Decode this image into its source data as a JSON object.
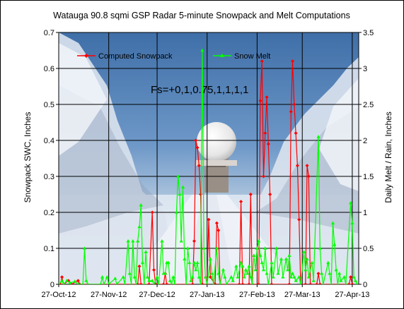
{
  "chart_data": {
    "type": "line",
    "title": "Watauga 90.8 sqmi GSP Radar 5-minute Snowpack and Melt Computations",
    "ylabel": "Snowpack SWC, Inches",
    "y2label": "Daily Melt / Rain, Inches",
    "annotation": "Fs=+0,1,0.75,1,1,1,1",
    "xlim": [
      "2012-10-27",
      "2013-05-01"
    ],
    "ylim": [
      0,
      0.7
    ],
    "y2lim": [
      0,
      3.5
    ],
    "x_ticks": [
      "27-Oct-12",
      "27-Nov-12",
      "27-Dec-12",
      "27-Jan-13",
      "27-Feb-13",
      "27-Mar-13",
      "27-Apr-13"
    ],
    "y_ticks": [
      "0",
      "0.1",
      "0.2",
      "0.3",
      "0.4",
      "0.5",
      "0.6",
      "0.7"
    ],
    "y2_ticks": [
      "0",
      "0.5",
      "1",
      "1.5",
      "2",
      "2.5",
      "3",
      "3.5"
    ],
    "grid": true,
    "legend": "top",
    "background": "photo of a snow-covered road lined with frosted trees leading to a white radar dome under a blue sky",
    "series": [
      {
        "name": "Computed Snowpack",
        "axis": "left",
        "color": "#ff0000",
        "marker": "diamond",
        "points": [
          [
            "2012-10-28",
            0.0
          ],
          [
            "2012-10-29",
            0.02
          ],
          [
            "2012-10-30",
            0.0
          ],
          [
            "2012-11-02",
            0.01
          ],
          [
            "2012-11-04",
            0.0
          ],
          [
            "2012-11-08",
            0.01
          ],
          [
            "2012-11-09",
            0.0
          ],
          [
            "2012-12-15",
            0.0
          ],
          [
            "2012-12-16",
            0.05
          ],
          [
            "2012-12-17",
            0.0
          ],
          [
            "2012-12-22",
            0.0
          ],
          [
            "2012-12-24",
            0.2
          ],
          [
            "2012-12-25",
            0.04
          ],
          [
            "2012-12-26",
            0.0
          ],
          [
            "2012-12-31",
            0.0
          ],
          [
            "2013-01-01",
            0.03
          ],
          [
            "2013-01-02",
            0.0
          ],
          [
            "2013-01-18",
            0.0
          ],
          [
            "2013-01-19",
            0.12
          ],
          [
            "2013-01-20",
            0.4
          ],
          [
            "2013-01-21",
            0.38
          ],
          [
            "2013-01-22",
            0.33
          ],
          [
            "2013-01-23",
            0.25
          ],
          [
            "2013-01-24",
            0.0
          ],
          [
            "2013-01-27",
            0.0
          ],
          [
            "2013-01-28",
            0.18
          ],
          [
            "2013-01-29",
            0.02
          ],
          [
            "2013-02-01",
            0.0
          ],
          [
            "2013-02-02",
            0.17
          ],
          [
            "2013-02-03",
            0.15
          ],
          [
            "2013-02-04",
            0.0
          ],
          [
            "2013-02-16",
            0.0
          ],
          [
            "2013-02-17",
            0.23
          ],
          [
            "2013-02-18",
            0.0
          ],
          [
            "2013-02-22",
            0.0
          ],
          [
            "2013-02-23",
            0.25
          ],
          [
            "2013-02-24",
            0.0
          ],
          [
            "2013-02-28",
            0.0
          ],
          [
            "2013-03-01",
            0.51
          ],
          [
            "2013-03-02",
            0.62
          ],
          [
            "2013-03-03",
            0.3
          ],
          [
            "2013-03-04",
            0.42
          ],
          [
            "2013-03-05",
            0.52
          ],
          [
            "2013-03-06",
            0.39
          ],
          [
            "2013-03-07",
            0.25
          ],
          [
            "2013-03-08",
            0.0
          ],
          [
            "2013-03-19",
            0.0
          ],
          [
            "2013-03-20",
            0.48
          ],
          [
            "2013-03-21",
            0.62
          ],
          [
            "2013-03-22",
            0.5
          ],
          [
            "2013-03-23",
            0.42
          ],
          [
            "2013-03-24",
            0.33
          ],
          [
            "2013-03-25",
            0.18
          ],
          [
            "2013-03-26",
            0.0
          ],
          [
            "2013-03-29",
            0.0
          ],
          [
            "2013-03-30",
            0.33
          ],
          [
            "2013-03-31",
            0.3
          ],
          [
            "2013-04-01",
            0.0
          ],
          [
            "2013-04-05",
            0.0
          ],
          [
            "2013-04-06",
            0.03
          ],
          [
            "2013-04-07",
            0.0
          ],
          [
            "2013-04-25",
            0.0
          ],
          [
            "2013-04-26",
            0.02
          ],
          [
            "2013-04-27",
            0.0
          ]
        ]
      },
      {
        "name": "Snow Melt",
        "axis": "right",
        "color": "#00ff00",
        "marker": "triangle",
        "points": [
          [
            "2012-10-27",
            0.0
          ],
          [
            "2012-10-29",
            0.05
          ],
          [
            "2012-10-30",
            0.0
          ],
          [
            "2012-11-01",
            0.05
          ],
          [
            "2012-11-03",
            0.02
          ],
          [
            "2012-11-06",
            0.04
          ],
          [
            "2012-11-08",
            0.0
          ],
          [
            "2012-11-11",
            0.0
          ],
          [
            "2012-11-12",
            0.5
          ],
          [
            "2012-11-13",
            0.05
          ],
          [
            "2012-11-14",
            0.0
          ],
          [
            "2012-11-22",
            0.0
          ],
          [
            "2012-11-23",
            0.1
          ],
          [
            "2012-11-24",
            0.0
          ],
          [
            "2012-11-26",
            0.1
          ],
          [
            "2012-11-27",
            0.0
          ],
          [
            "2012-12-01",
            0.08
          ],
          [
            "2012-12-02",
            0.0
          ],
          [
            "2012-12-06",
            0.1
          ],
          [
            "2012-12-07",
            0.0
          ],
          [
            "2012-12-09",
            0.6
          ],
          [
            "2012-12-10",
            0.15
          ],
          [
            "2012-12-11",
            0.0
          ],
          [
            "2012-12-12",
            0.6
          ],
          [
            "2012-12-13",
            0.1
          ],
          [
            "2012-12-14",
            0.0
          ],
          [
            "2012-12-15",
            0.6
          ],
          [
            "2012-12-16",
            0.8
          ],
          [
            "2012-12-17",
            1.1
          ],
          [
            "2012-12-18",
            0.3
          ],
          [
            "2012-12-19",
            0.0
          ],
          [
            "2012-12-20",
            0.45
          ],
          [
            "2012-12-21",
            0.1
          ],
          [
            "2012-12-22",
            0.05
          ],
          [
            "2012-12-24",
            0.05
          ],
          [
            "2012-12-25",
            0.0
          ],
          [
            "2012-12-27",
            0.1
          ],
          [
            "2012-12-28",
            0.0
          ],
          [
            "2012-12-30",
            0.6
          ],
          [
            "2012-12-31",
            0.15
          ],
          [
            "2013-01-01",
            0.15
          ],
          [
            "2013-01-02",
            0.3
          ],
          [
            "2013-01-03",
            0.3
          ],
          [
            "2013-01-04",
            0.05
          ],
          [
            "2013-01-05",
            0.0
          ],
          [
            "2013-01-06",
            0.1
          ],
          [
            "2013-01-07",
            0.0
          ],
          [
            "2013-01-08",
            1.0
          ],
          [
            "2013-01-09",
            1.5
          ],
          [
            "2013-01-10",
            1.25
          ],
          [
            "2013-01-11",
            0.6
          ],
          [
            "2013-01-12",
            1.35
          ],
          [
            "2013-01-13",
            0.35
          ],
          [
            "2013-01-14",
            0.0
          ],
          [
            "2013-01-15",
            0.5
          ],
          [
            "2013-01-16",
            0.3
          ],
          [
            "2013-01-17",
            0.05
          ],
          [
            "2013-01-18",
            0.1
          ],
          [
            "2013-01-19",
            0.3
          ],
          [
            "2013-01-20",
            0.2
          ],
          [
            "2013-01-21",
            0.3
          ],
          [
            "2013-01-22",
            0.1
          ],
          [
            "2013-01-23",
            0.0
          ],
          [
            "2013-01-24",
            3.25
          ],
          [
            "2013-01-25",
            0.5
          ],
          [
            "2013-01-26",
            0.1
          ],
          [
            "2013-01-27",
            0.0
          ],
          [
            "2013-01-29",
            0.35
          ],
          [
            "2013-01-30",
            0.15
          ],
          [
            "2013-01-31",
            0.0
          ],
          [
            "2013-02-02",
            0.5
          ],
          [
            "2013-02-03",
            0.15
          ],
          [
            "2013-02-04",
            0.0
          ],
          [
            "2013-02-06",
            0.2
          ],
          [
            "2013-02-07",
            0.1
          ],
          [
            "2013-02-08",
            0.0
          ],
          [
            "2013-02-11",
            0.1
          ],
          [
            "2013-02-12",
            0.05
          ],
          [
            "2013-02-14",
            0.25
          ],
          [
            "2013-02-15",
            0.1
          ],
          [
            "2013-02-17",
            0.3
          ],
          [
            "2013-02-18",
            0.25
          ],
          [
            "2013-02-19",
            0.1
          ],
          [
            "2013-02-20",
            0.2
          ],
          [
            "2013-02-21",
            0.15
          ],
          [
            "2013-02-22",
            0.25
          ],
          [
            "2013-02-23",
            0.1
          ],
          [
            "2013-02-24",
            0.0
          ],
          [
            "2013-02-25",
            0.4
          ],
          [
            "2013-02-26",
            0.2
          ],
          [
            "2013-02-27",
            0.5
          ],
          [
            "2013-02-28",
            0.6
          ],
          [
            "2013-03-01",
            0.4
          ],
          [
            "2013-03-02",
            0.3
          ],
          [
            "2013-03-03",
            0.2
          ],
          [
            "2013-03-04",
            0.5
          ],
          [
            "2013-03-05",
            0.15
          ],
          [
            "2013-03-06",
            0.0
          ],
          [
            "2013-03-08",
            0.3
          ],
          [
            "2013-03-09",
            0.1
          ],
          [
            "2013-03-11",
            0.5
          ],
          [
            "2013-03-12",
            0.15
          ],
          [
            "2013-03-14",
            0.35
          ],
          [
            "2013-03-15",
            0.1
          ],
          [
            "2013-03-17",
            0.35
          ],
          [
            "2013-03-18",
            0.2
          ],
          [
            "2013-03-19",
            0.4
          ],
          [
            "2013-03-20",
            0.1
          ],
          [
            "2013-03-21",
            0.15
          ],
          [
            "2013-03-22",
            0.1
          ],
          [
            "2013-03-23",
            0.05
          ],
          [
            "2013-03-25",
            0.1
          ],
          [
            "2013-03-26",
            0.0
          ],
          [
            "2013-03-28",
            0.45
          ],
          [
            "2013-03-29",
            0.2
          ],
          [
            "2013-03-30",
            0.35
          ],
          [
            "2013-03-31",
            0.1
          ],
          [
            "2013-04-02",
            0.3
          ],
          [
            "2013-04-03",
            0.05
          ],
          [
            "2013-04-06",
            2.05
          ],
          [
            "2013-04-07",
            0.5
          ],
          [
            "2013-04-08",
            0.15
          ],
          [
            "2013-04-09",
            0.0
          ],
          [
            "2013-04-12",
            0.3
          ],
          [
            "2013-04-13",
            0.15
          ],
          [
            "2013-04-14",
            0.0
          ],
          [
            "2013-04-15",
            0.85
          ],
          [
            "2013-04-16",
            0.55
          ],
          [
            "2013-04-17",
            0.2
          ],
          [
            "2013-04-18",
            0.0
          ],
          [
            "2013-04-19",
            0.15
          ],
          [
            "2013-04-20",
            0.05
          ],
          [
            "2013-04-22",
            0.1
          ],
          [
            "2013-04-23",
            0.0
          ],
          [
            "2013-04-26",
            1.13
          ],
          [
            "2013-04-27",
            0.85
          ],
          [
            "2013-04-28",
            0.1
          ],
          [
            "2013-04-29",
            0.05
          ],
          [
            "2013-04-30",
            0.0
          ]
        ]
      }
    ]
  }
}
